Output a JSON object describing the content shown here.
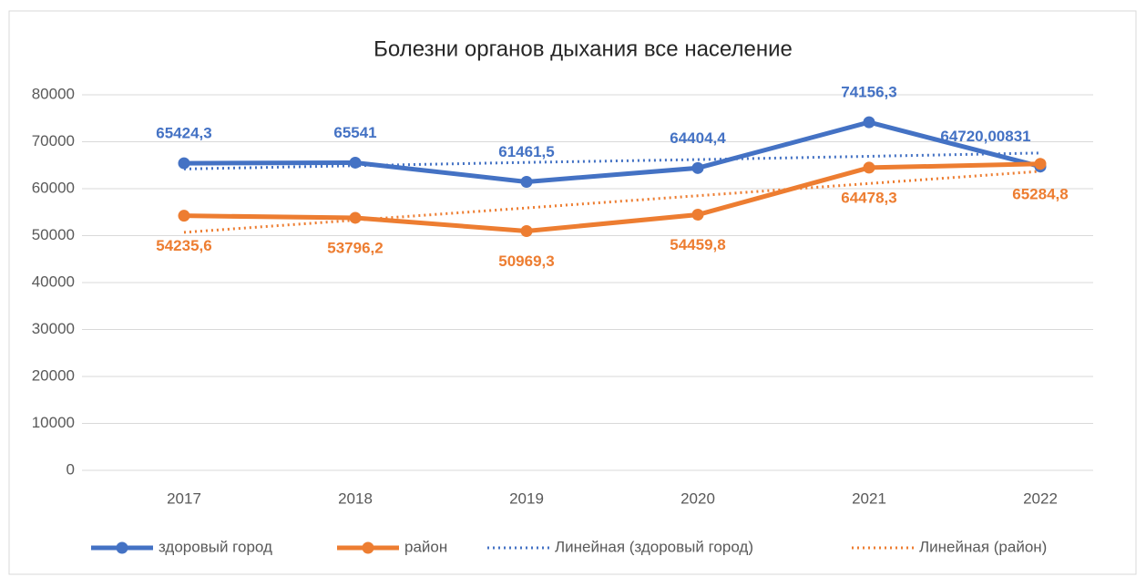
{
  "chart_data": {
    "type": "line",
    "title": "Болезни органов дыхания все население",
    "categories": [
      "2017",
      "2018",
      "2019",
      "2020",
      "2021",
      "2022"
    ],
    "series": [
      {
        "name": "здоровый город",
        "color": "#4472c4",
        "values": [
          65424.3,
          65541,
          61461.5,
          64404.4,
          74156.3,
          64720.00831
        ],
        "value_labels": [
          "65424,3",
          "65541",
          "61461,5",
          "64404,4",
          "74156,3",
          "64720,00831"
        ]
      },
      {
        "name": "район",
        "color": "#ed7d31",
        "values": [
          54235.6,
          53796.2,
          50969.3,
          54459.8,
          64478.3,
          65284.8
        ],
        "value_labels": [
          "54235,6",
          "53796,2",
          "50969,3",
          "54459,8",
          "64478,3",
          "65284,8"
        ]
      },
      {
        "name": "Линейная (здоровый город)",
        "color": "#4472c4",
        "dotted": true,
        "values": [
          64200,
          64900,
          65600,
          66200,
          66900,
          67600
        ]
      },
      {
        "name": "Линейная (район)",
        "color": "#ed7d31",
        "dotted": true,
        "values": [
          50700,
          53300,
          55900,
          58500,
          61100,
          63700
        ]
      }
    ],
    "ylim": [
      0,
      80000
    ],
    "yticks": [
      0,
      10000,
      20000,
      30000,
      40000,
      50000,
      60000,
      70000,
      80000
    ],
    "grid": true,
    "legend": "bottom"
  }
}
